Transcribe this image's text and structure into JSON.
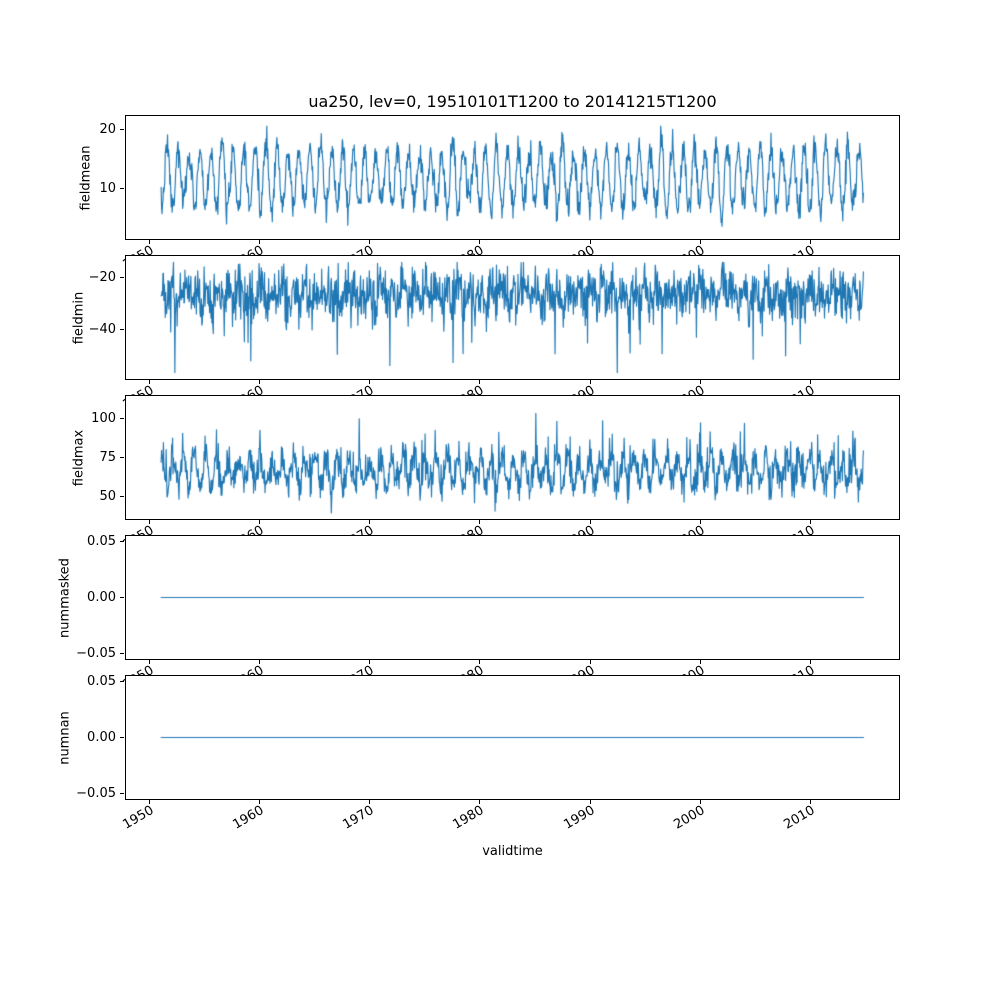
{
  "figure": {
    "title": "ua250, lev=0, 19510101T1200 to 20141215T1200",
    "xlabel": "validtime",
    "line_color": "#1f77b4",
    "background": "#ffffff"
  },
  "chart_data": {
    "type": "line",
    "title": "ua250, lev=0, 19510101T1200 to 20141215T1200",
    "xlabel": "validtime",
    "legend": "none",
    "grid": false,
    "shared_x": {
      "label": "validtime",
      "lim": [
        1947.8,
        2018.2
      ],
      "ticks": [
        1950,
        1960,
        1970,
        1980,
        1990,
        2000,
        2010
      ],
      "tick_labels": [
        "1950",
        "1960",
        "1970",
        "1980",
        "1990",
        "2000",
        "2010"
      ],
      "tick_rotation_deg": 30,
      "data_start": 1951.0,
      "data_end": 2014.96,
      "points_per_year": 24
    },
    "subplots": [
      {
        "name": "fieldmean",
        "ylabel": "fieldmean",
        "ylim": [
          1.2,
          22.5
        ],
        "yticks": [
          10,
          20
        ],
        "ytick_labels": [
          "10",
          "20"
        ],
        "observed_range": [
          2,
          21
        ],
        "model": {
          "kind": "seasonal",
          "base": 11.8,
          "amplitude": 5.2,
          "amp_jitter": 1.3,
          "noise": 1.2,
          "phase": 0.55,
          "spike_prob": 0,
          "spike_mag": 0,
          "clamp": [
            2.1,
            21.3
          ]
        }
      },
      {
        "name": "fieldmin",
        "ylabel": "fieldmin",
        "ylim": [
          -59.5,
          -11.5
        ],
        "yticks": [
          -40,
          -20
        ],
        "ytick_labels": [
          "−40",
          "−20"
        ],
        "observed_range": [
          -57,
          -14
        ],
        "model": {
          "kind": "seasonal",
          "base": -26.5,
          "amplitude": 3.0,
          "amp_jitter": 1.0,
          "noise": 5.0,
          "phase": 0.1,
          "spike_prob": 0.013,
          "spike_mag": -17,
          "clamp": [
            -57,
            -14
          ]
        }
      },
      {
        "name": "fieldmax",
        "ylabel": "fieldmax",
        "ylim": [
          34.5,
          115.5
        ],
        "yticks": [
          50,
          75,
          100
        ],
        "ytick_labels": [
          "50",
          "75",
          "100"
        ],
        "observed_range": [
          38,
          112
        ],
        "model": {
          "kind": "seasonal",
          "base": 66,
          "amplitude": 9,
          "amp_jitter": 2.5,
          "noise": 5.5,
          "phase": 0.05,
          "spike_prob": 0.035,
          "spike_mag": 19,
          "clamp": [
            38.5,
            111.5
          ]
        }
      },
      {
        "name": "nummasked",
        "ylabel": "nummasked",
        "ylim": [
          -0.0555,
          0.0555
        ],
        "yticks": [
          -0.05,
          0,
          0.05
        ],
        "ytick_labels": [
          "−0.05",
          "0.00",
          "0.05"
        ],
        "observed_range": [
          0,
          0
        ],
        "model": {
          "kind": "constant",
          "value": 0
        }
      },
      {
        "name": "numnan",
        "ylabel": "numnan",
        "ylim": [
          -0.0555,
          0.0555
        ],
        "yticks": [
          -0.05,
          0,
          0.05
        ],
        "ytick_labels": [
          "−0.05",
          "0.00",
          "0.05"
        ],
        "observed_range": [
          0,
          0
        ],
        "model": {
          "kind": "constant",
          "value": 0
        }
      }
    ]
  }
}
